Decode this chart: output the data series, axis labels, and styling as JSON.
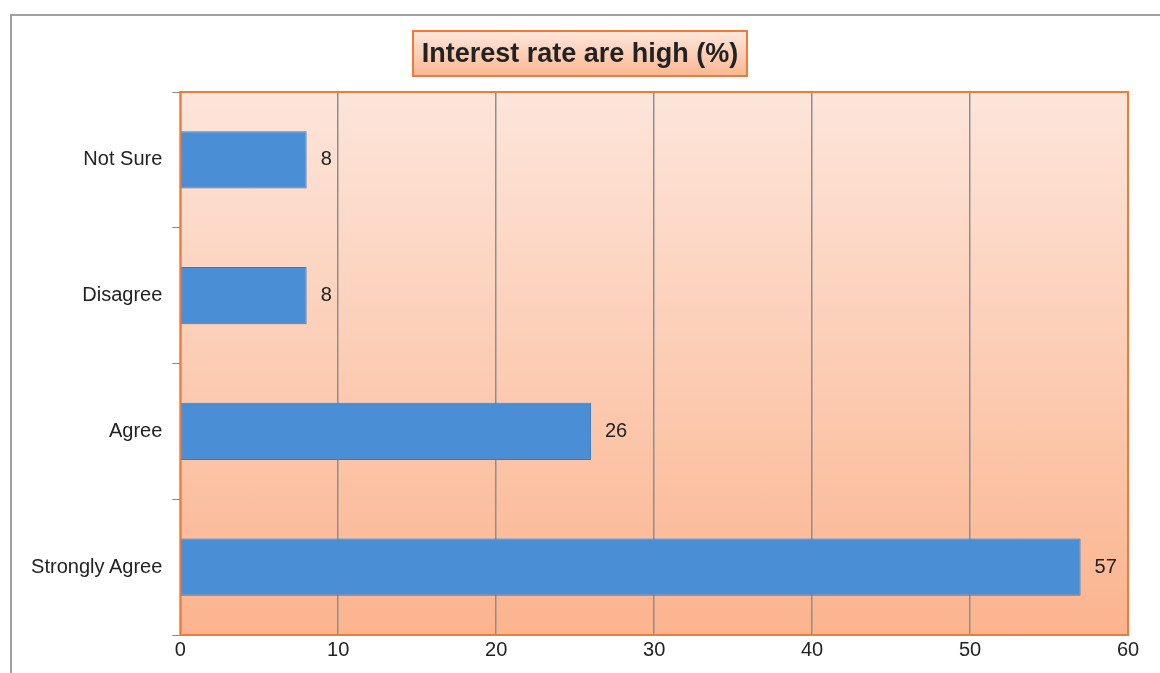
{
  "chart_data": {
    "type": "bar",
    "orientation": "horizontal",
    "title": "Interest rate are high (%)",
    "categories": [
      "Not Sure",
      "Disagree",
      "Agree",
      "Strongly Agree"
    ],
    "values": [
      8,
      8,
      26,
      57
    ],
    "color": "#4a8fd6",
    "xlim": [
      0,
      60
    ],
    "xticks": [
      0,
      10,
      20,
      30,
      40,
      50,
      60
    ],
    "grid": "x",
    "data_labels": true,
    "legend": false
  }
}
